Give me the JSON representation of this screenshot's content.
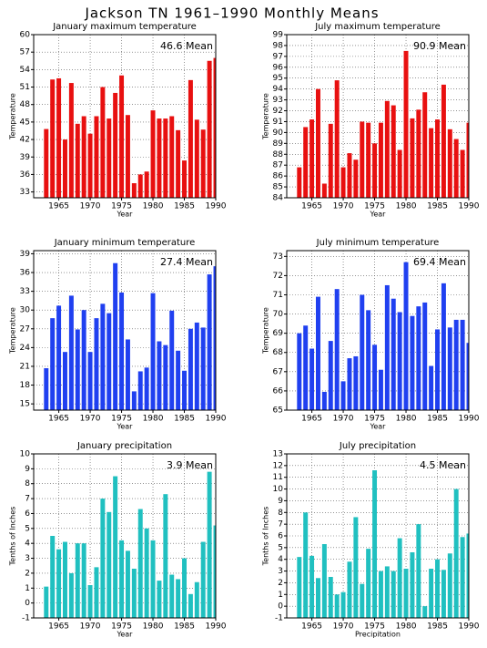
{
  "title": "Jackson TN  1961–1990 Monthly Means",
  "chart_data": [
    {
      "type": "bar",
      "title": "January maximum temperature",
      "annotation": "46.6 Mean",
      "xlabel": "Year",
      "ylabel": "Temperature",
      "color": "#e81010",
      "x": [
        1963,
        1964,
        1965,
        1966,
        1967,
        1968,
        1969,
        1970,
        1971,
        1972,
        1973,
        1974,
        1975,
        1976,
        1977,
        1978,
        1979,
        1980,
        1981,
        1982,
        1983,
        1984,
        1985,
        1986,
        1987,
        1988,
        1989,
        1990
      ],
      "values": [
        43.8,
        52.3,
        52.5,
        42,
        51.7,
        44.7,
        46,
        43,
        46,
        51,
        45.6,
        50,
        53,
        46.2,
        34.5,
        36,
        36.5,
        47,
        45.6,
        45.6,
        46,
        43.6,
        38.4,
        52.2,
        45.4,
        43.7,
        55.5,
        56
      ],
      "xlim": [
        1961,
        1990
      ],
      "xticks": [
        1965,
        1970,
        1975,
        1980,
        1985,
        1990
      ],
      "ylim": [
        32,
        60
      ],
      "yticks": [
        33,
        36,
        39,
        42,
        45,
        48,
        51,
        54,
        57,
        60
      ],
      "grid": true
    },
    {
      "type": "bar",
      "title": "July maximum temperature",
      "annotation": "90.9 Mean",
      "xlabel": "Year",
      "ylabel": "Temperature",
      "color": "#e81010",
      "x": [
        1963,
        1964,
        1965,
        1966,
        1967,
        1968,
        1969,
        1970,
        1971,
        1972,
        1973,
        1974,
        1975,
        1976,
        1977,
        1978,
        1979,
        1980,
        1981,
        1982,
        1983,
        1984,
        1985,
        1986,
        1987,
        1988,
        1989,
        1990
      ],
      "values": [
        86.8,
        90.5,
        91.2,
        94,
        85.3,
        90.8,
        94.8,
        86.8,
        88.1,
        87.5,
        91,
        90.9,
        89,
        90.9,
        92.9,
        92.5,
        88.4,
        97.5,
        91.3,
        92.1,
        93.7,
        90.4,
        91.2,
        94.4,
        90.3,
        89.4,
        88.4,
        90.9
      ],
      "xlim": [
        1961,
        1990
      ],
      "xticks": [
        1965,
        1970,
        1975,
        1980,
        1985,
        1990
      ],
      "ylim": [
        84,
        99
      ],
      "yticks": [
        84,
        85,
        86,
        87,
        88,
        89,
        90,
        91,
        92,
        93,
        94,
        95,
        96,
        97,
        98,
        99
      ],
      "grid": true
    },
    {
      "type": "bar",
      "title": "January minimum temperature",
      "annotation": "27.4 Mean",
      "xlabel": "Year",
      "ylabel": "Temperature",
      "color": "#2040f0",
      "x": [
        1963,
        1964,
        1965,
        1966,
        1967,
        1968,
        1969,
        1970,
        1971,
        1972,
        1973,
        1974,
        1975,
        1976,
        1977,
        1978,
        1979,
        1980,
        1981,
        1982,
        1983,
        1984,
        1985,
        1986,
        1987,
        1988,
        1989,
        1990
      ],
      "values": [
        20.7,
        28.7,
        30.7,
        23.3,
        32.3,
        26.9,
        30,
        23.3,
        28.7,
        31,
        29.5,
        37.5,
        32.8,
        25.3,
        17,
        20.2,
        20.8,
        32.7,
        25,
        24.4,
        29.9,
        23.5,
        20.3,
        27,
        28,
        27.2,
        35.7,
        37
      ],
      "xlim": [
        1961,
        1990
      ],
      "xticks": [
        1965,
        1970,
        1975,
        1980,
        1985,
        1990
      ],
      "ylim": [
        14,
        39.5
      ],
      "yticks": [
        15,
        18,
        21,
        24,
        27,
        30,
        33,
        36,
        39
      ],
      "grid": true
    },
    {
      "type": "bar",
      "title": "July minimum temperature",
      "annotation": "69.4 Mean",
      "xlabel": "Year",
      "ylabel": "Temperature",
      "color": "#2040f0",
      "x": [
        1963,
        1964,
        1965,
        1966,
        1967,
        1968,
        1969,
        1970,
        1971,
        1972,
        1973,
        1974,
        1975,
        1976,
        1977,
        1978,
        1979,
        1980,
        1981,
        1982,
        1983,
        1984,
        1985,
        1986,
        1987,
        1988,
        1989,
        1990
      ],
      "values": [
        69,
        69.4,
        68.2,
        70.9,
        65.95,
        68.6,
        71.3,
        66.5,
        67.7,
        67.8,
        71,
        70.2,
        68.4,
        67.1,
        71.5,
        70.8,
        70.1,
        72.7,
        69.9,
        70.4,
        70.6,
        67.3,
        69.2,
        71.6,
        69.3,
        69.7,
        69.7,
        68.5
      ],
      "xlim": [
        1961,
        1990
      ],
      "xticks": [
        1965,
        1970,
        1975,
        1980,
        1985,
        1990
      ],
      "ylim": [
        65,
        73.3
      ],
      "yticks": [
        65,
        66,
        67,
        68,
        69,
        70,
        71,
        72,
        73
      ],
      "grid": true
    },
    {
      "type": "bar",
      "title": "January precipitation",
      "annotation": "3.9 Mean",
      "xlabel": "Year",
      "ylabel": "Tenths of Inches",
      "color": "#20c0c0",
      "x": [
        1963,
        1964,
        1965,
        1966,
        1967,
        1968,
        1969,
        1970,
        1971,
        1972,
        1973,
        1974,
        1975,
        1976,
        1977,
        1978,
        1979,
        1980,
        1981,
        1982,
        1983,
        1984,
        1985,
        1986,
        1987,
        1988,
        1989,
        1990
      ],
      "values": [
        1.1,
        4.5,
        3.6,
        4.1,
        2,
        4,
        4,
        1.2,
        2.4,
        7,
        6.1,
        8.5,
        4.2,
        3.5,
        2.3,
        6.3,
        5,
        4.2,
        1.5,
        7.3,
        1.9,
        1.6,
        3,
        0.6,
        1.4,
        4.1,
        8.8,
        5.2
      ],
      "xlim": [
        1961,
        1990
      ],
      "xticks": [
        1965,
        1970,
        1975,
        1980,
        1985,
        1990
      ],
      "ylim": [
        -1,
        10
      ],
      "yticks": [
        -1,
        0,
        1,
        2,
        3,
        4,
        5,
        6,
        7,
        8,
        9,
        10
      ],
      "grid": true
    },
    {
      "type": "bar",
      "title": "July precipitation",
      "annotation": "4.5 Mean",
      "xlabel": "Precipitation",
      "ylabel": "Tenths of Inches",
      "color": "#20c0c0",
      "x": [
        1963,
        1964,
        1965,
        1966,
        1967,
        1968,
        1969,
        1970,
        1971,
        1972,
        1973,
        1974,
        1975,
        1976,
        1977,
        1978,
        1979,
        1980,
        1981,
        1982,
        1983,
        1984,
        1985,
        1986,
        1987,
        1988,
        1989,
        1990
      ],
      "values": [
        4.2,
        8,
        4.3,
        2.4,
        5.3,
        2.5,
        1,
        1.2,
        3.8,
        7.6,
        1.9,
        4.9,
        11.6,
        3,
        3.4,
        3,
        5.8,
        3.2,
        4.6,
        7,
        0,
        3.2,
        4,
        3.1,
        4.5,
        10,
        5.9,
        6.2
      ],
      "xlim": [
        1961,
        1990
      ],
      "xticks": [
        1965,
        1970,
        1975,
        1980,
        1985,
        1990
      ],
      "ylim": [
        -1,
        13
      ],
      "yticks": [
        -1,
        0,
        1,
        2,
        3,
        4,
        5,
        6,
        7,
        8,
        9,
        10,
        11,
        12,
        13
      ],
      "grid": true
    }
  ]
}
